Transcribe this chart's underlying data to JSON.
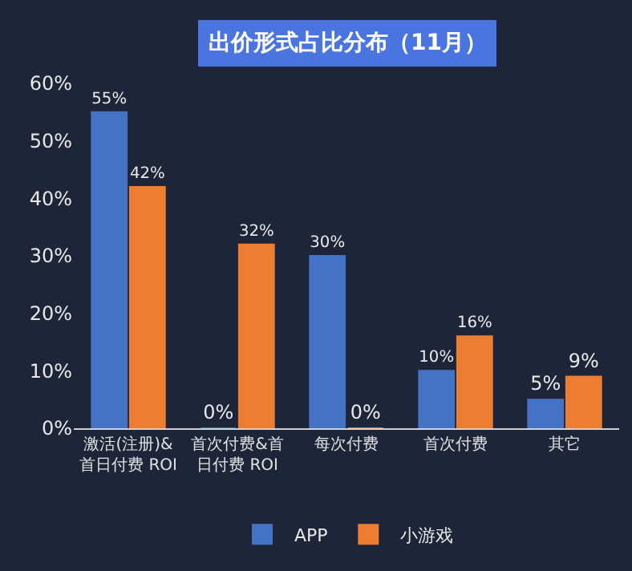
{
  "chart_data": {
    "type": "bar",
    "title": "出价形式占比分布（11月）",
    "categories": [
      "激活(注册)&首日付费 ROI",
      "首次付费&首日付费 ROI",
      "每次付费",
      "首次付费",
      "其它"
    ],
    "series": [
      {
        "name": "APP",
        "color": "#4472c4",
        "values": [
          55,
          0,
          30,
          10,
          5
        ],
        "value_labels": [
          "55%",
          "0%",
          "30%",
          "10%",
          "5%"
        ]
      },
      {
        "name": "小游戏",
        "color": "#ed7d31",
        "values": [
          42,
          32,
          0,
          16,
          9
        ],
        "value_labels": [
          "42%",
          "32%",
          "0%",
          "16%",
          "9%"
        ]
      }
    ],
    "ylim": [
      0,
      60
    ],
    "yticks": [
      {
        "value": 0,
        "label": "0%"
      },
      {
        "value": 10,
        "label": "10%"
      },
      {
        "value": 20,
        "label": "20%"
      },
      {
        "value": 30,
        "label": "30%"
      },
      {
        "value": 40,
        "label": "40%"
      },
      {
        "value": 50,
        "label": "50%"
      },
      {
        "value": 60,
        "label": "60%"
      }
    ],
    "grid": false,
    "legend": "bottom"
  }
}
